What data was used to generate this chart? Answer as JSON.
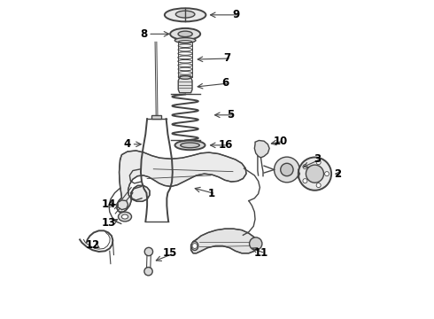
{
  "bg_color": "#ffffff",
  "line_color": "#444444",
  "label_color": "#000000",
  "figsize": [
    4.9,
    3.6
  ],
  "dpi": 100,
  "label_fontsize": 8.5,
  "lw": 1.0,
  "lw2": 1.4
}
